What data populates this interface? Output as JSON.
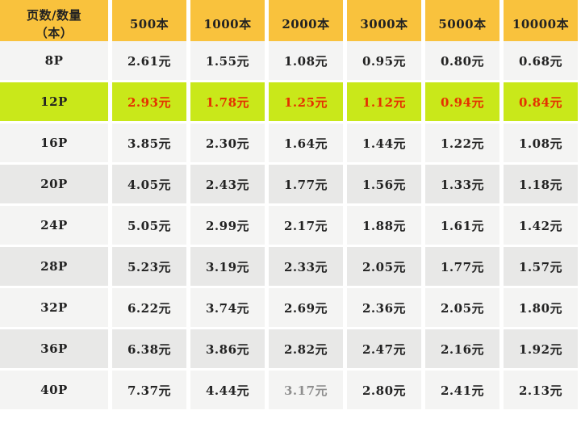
{
  "table": {
    "corner_line1": "页数/数量",
    "corner_line2": "（本）"
  },
  "chart_data": {
    "type": "table",
    "row_header": "页数/数量（本）",
    "columns": [
      "500本",
      "1000本",
      "2000本",
      "3000本",
      "5000本",
      "10000本"
    ],
    "row_labels": [
      "8P",
      "12P",
      "16P",
      "20P",
      "24P",
      "28P",
      "32P",
      "36P",
      "40P"
    ],
    "unit": "元",
    "values": [
      [
        "2.61",
        "1.55",
        "1.08",
        "0.95",
        "0.80",
        "0.68"
      ],
      [
        "2.93",
        "1.78",
        "1.25",
        "1.12",
        "0.94",
        "0.84"
      ],
      [
        "3.85",
        "2.30",
        "1.64",
        "1.44",
        "1.22",
        "1.08"
      ],
      [
        "4.05",
        "2.43",
        "1.77",
        "1.56",
        "1.33",
        "1.18"
      ],
      [
        "5.05",
        "2.99",
        "2.17",
        "1.88",
        "1.61",
        "1.42"
      ],
      [
        "5.23",
        "3.19",
        "2.33",
        "2.05",
        "1.77",
        "1.57"
      ],
      [
        "6.22",
        "3.74",
        "2.69",
        "2.36",
        "2.05",
        "1.80"
      ],
      [
        "6.38",
        "3.86",
        "2.82",
        "2.47",
        "2.16",
        "1.92"
      ],
      [
        "7.37",
        "4.44",
        "3.17",
        "2.80",
        "2.41",
        "2.13"
      ]
    ],
    "highlighted_row": "12P",
    "muted_cells": [
      {
        "row": "40P",
        "column": "2000本"
      }
    ]
  },
  "colors": {
    "header_background": "#F9C23D",
    "row_light": "#F4F4F3",
    "row_dark": "#E8E8E7",
    "highlight_background": "#C9E81A",
    "highlight_price_text": "#E53000",
    "normal_text": "#222222",
    "muted_price_text": "#8E8E8E",
    "grid_gap": "#FFFFFF"
  }
}
